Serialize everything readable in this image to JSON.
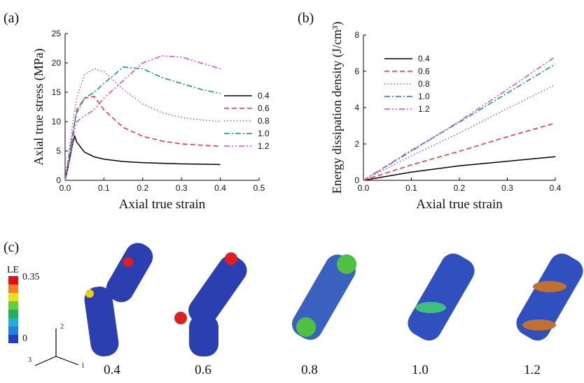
{
  "chart_data": [
    {
      "type": "line",
      "panel": "(a)",
      "x_label": "Axial true strain",
      "y_label": "Axial true stress (MPa)",
      "x": [
        0,
        0.01,
        0.02,
        0.025,
        0.03,
        0.05,
        0.075,
        0.1,
        0.15,
        0.2,
        0.25,
        0.3,
        0.35,
        0.4
      ],
      "series": [
        {
          "name": "0.4",
          "color": "#000000",
          "dash": "solid",
          "values": [
            0,
            3,
            6.5,
            7.5,
            6.5,
            4.8,
            4,
            3.6,
            3.2,
            3,
            2.9,
            2.8,
            2.75,
            2.7
          ]
        },
        {
          "name": "0.6",
          "color": "#e8322f",
          "dash": "dash",
          "values": [
            0,
            4,
            8,
            10,
            12,
            14,
            14.3,
            12,
            9,
            7.5,
            6.7,
            6.2,
            6,
            5.8
          ]
        },
        {
          "name": "0.8",
          "color": "#6a6ad6",
          "dash": "dot",
          "values": [
            0,
            5,
            10,
            12,
            14,
            18,
            19,
            18.5,
            15.5,
            13,
            11.5,
            10.7,
            10.3,
            10
          ]
        },
        {
          "name": "1.0",
          "color": "#138a8a",
          "dash": "dashdot",
          "values": [
            0,
            4,
            8,
            10,
            11.5,
            14,
            15,
            16.5,
            19.3,
            19,
            17.5,
            16.5,
            15.5,
            14.8
          ]
        },
        {
          "name": "1.2",
          "color": "#d24ad2",
          "dash": "dashdotdot",
          "values": [
            0,
            3,
            7,
            9,
            10,
            11,
            12,
            14,
            17,
            20,
            21.2,
            21,
            20,
            19
          ]
        }
      ],
      "xlim": [
        0,
        0.5
      ],
      "xticks": [
        {
          "value": 0,
          "label": "0.0"
        },
        0.1,
        0.2,
        0.3,
        0.4,
        0.5
      ],
      "ylim": [
        0,
        25
      ],
      "yticks": [
        0,
        5,
        10,
        15,
        20,
        25
      ],
      "legend": "right"
    },
    {
      "type": "line",
      "panel": "(b)",
      "x_label": "Axial true strain",
      "y_label": "Energy dissipation density (J/cm³)",
      "x": [
        0,
        0.1,
        0.2,
        0.3,
        0.4
      ],
      "series": [
        {
          "name": "0.4",
          "color": "#000000",
          "dash": "solid",
          "values": [
            0,
            0.45,
            0.8,
            1.05,
            1.3
          ]
        },
        {
          "name": "0.6",
          "color": "#e8322f",
          "dash": "dash",
          "values": [
            0,
            0.85,
            1.6,
            2.4,
            3.15
          ]
        },
        {
          "name": "0.8",
          "color": "#6a6ad6",
          "dash": "dot",
          "values": [
            0,
            1.35,
            2.6,
            3.95,
            5.25
          ]
        },
        {
          "name": "1.0",
          "color": "#138a8a",
          "dash": "dashdot",
          "values": [
            0,
            1.65,
            3.2,
            4.8,
            6.4
          ]
        },
        {
          "name": "1.2",
          "color": "#d24ad2",
          "dash": "dashdotdot",
          "values": [
            0,
            1.6,
            3.25,
            5.0,
            6.8
          ]
        }
      ],
      "xlim": [
        0,
        0.4
      ],
      "xticks": [
        {
          "value": 0,
          "label": "0.0"
        },
        0.1,
        0.2,
        0.3,
        0.4
      ],
      "ylim": [
        0,
        8
      ],
      "yticks": [
        0,
        2,
        4,
        6,
        8
      ],
      "legend": "upper left"
    }
  ],
  "panel_c": {
    "panel": "(c)",
    "colorbar_title": "LE",
    "colorbar_max": "0.35",
    "colorbar_min": "0",
    "axes": [
      "1",
      "2",
      "3"
    ],
    "labels": [
      "0.4",
      "0.6",
      "0.8",
      "1.0",
      "1.2"
    ]
  }
}
